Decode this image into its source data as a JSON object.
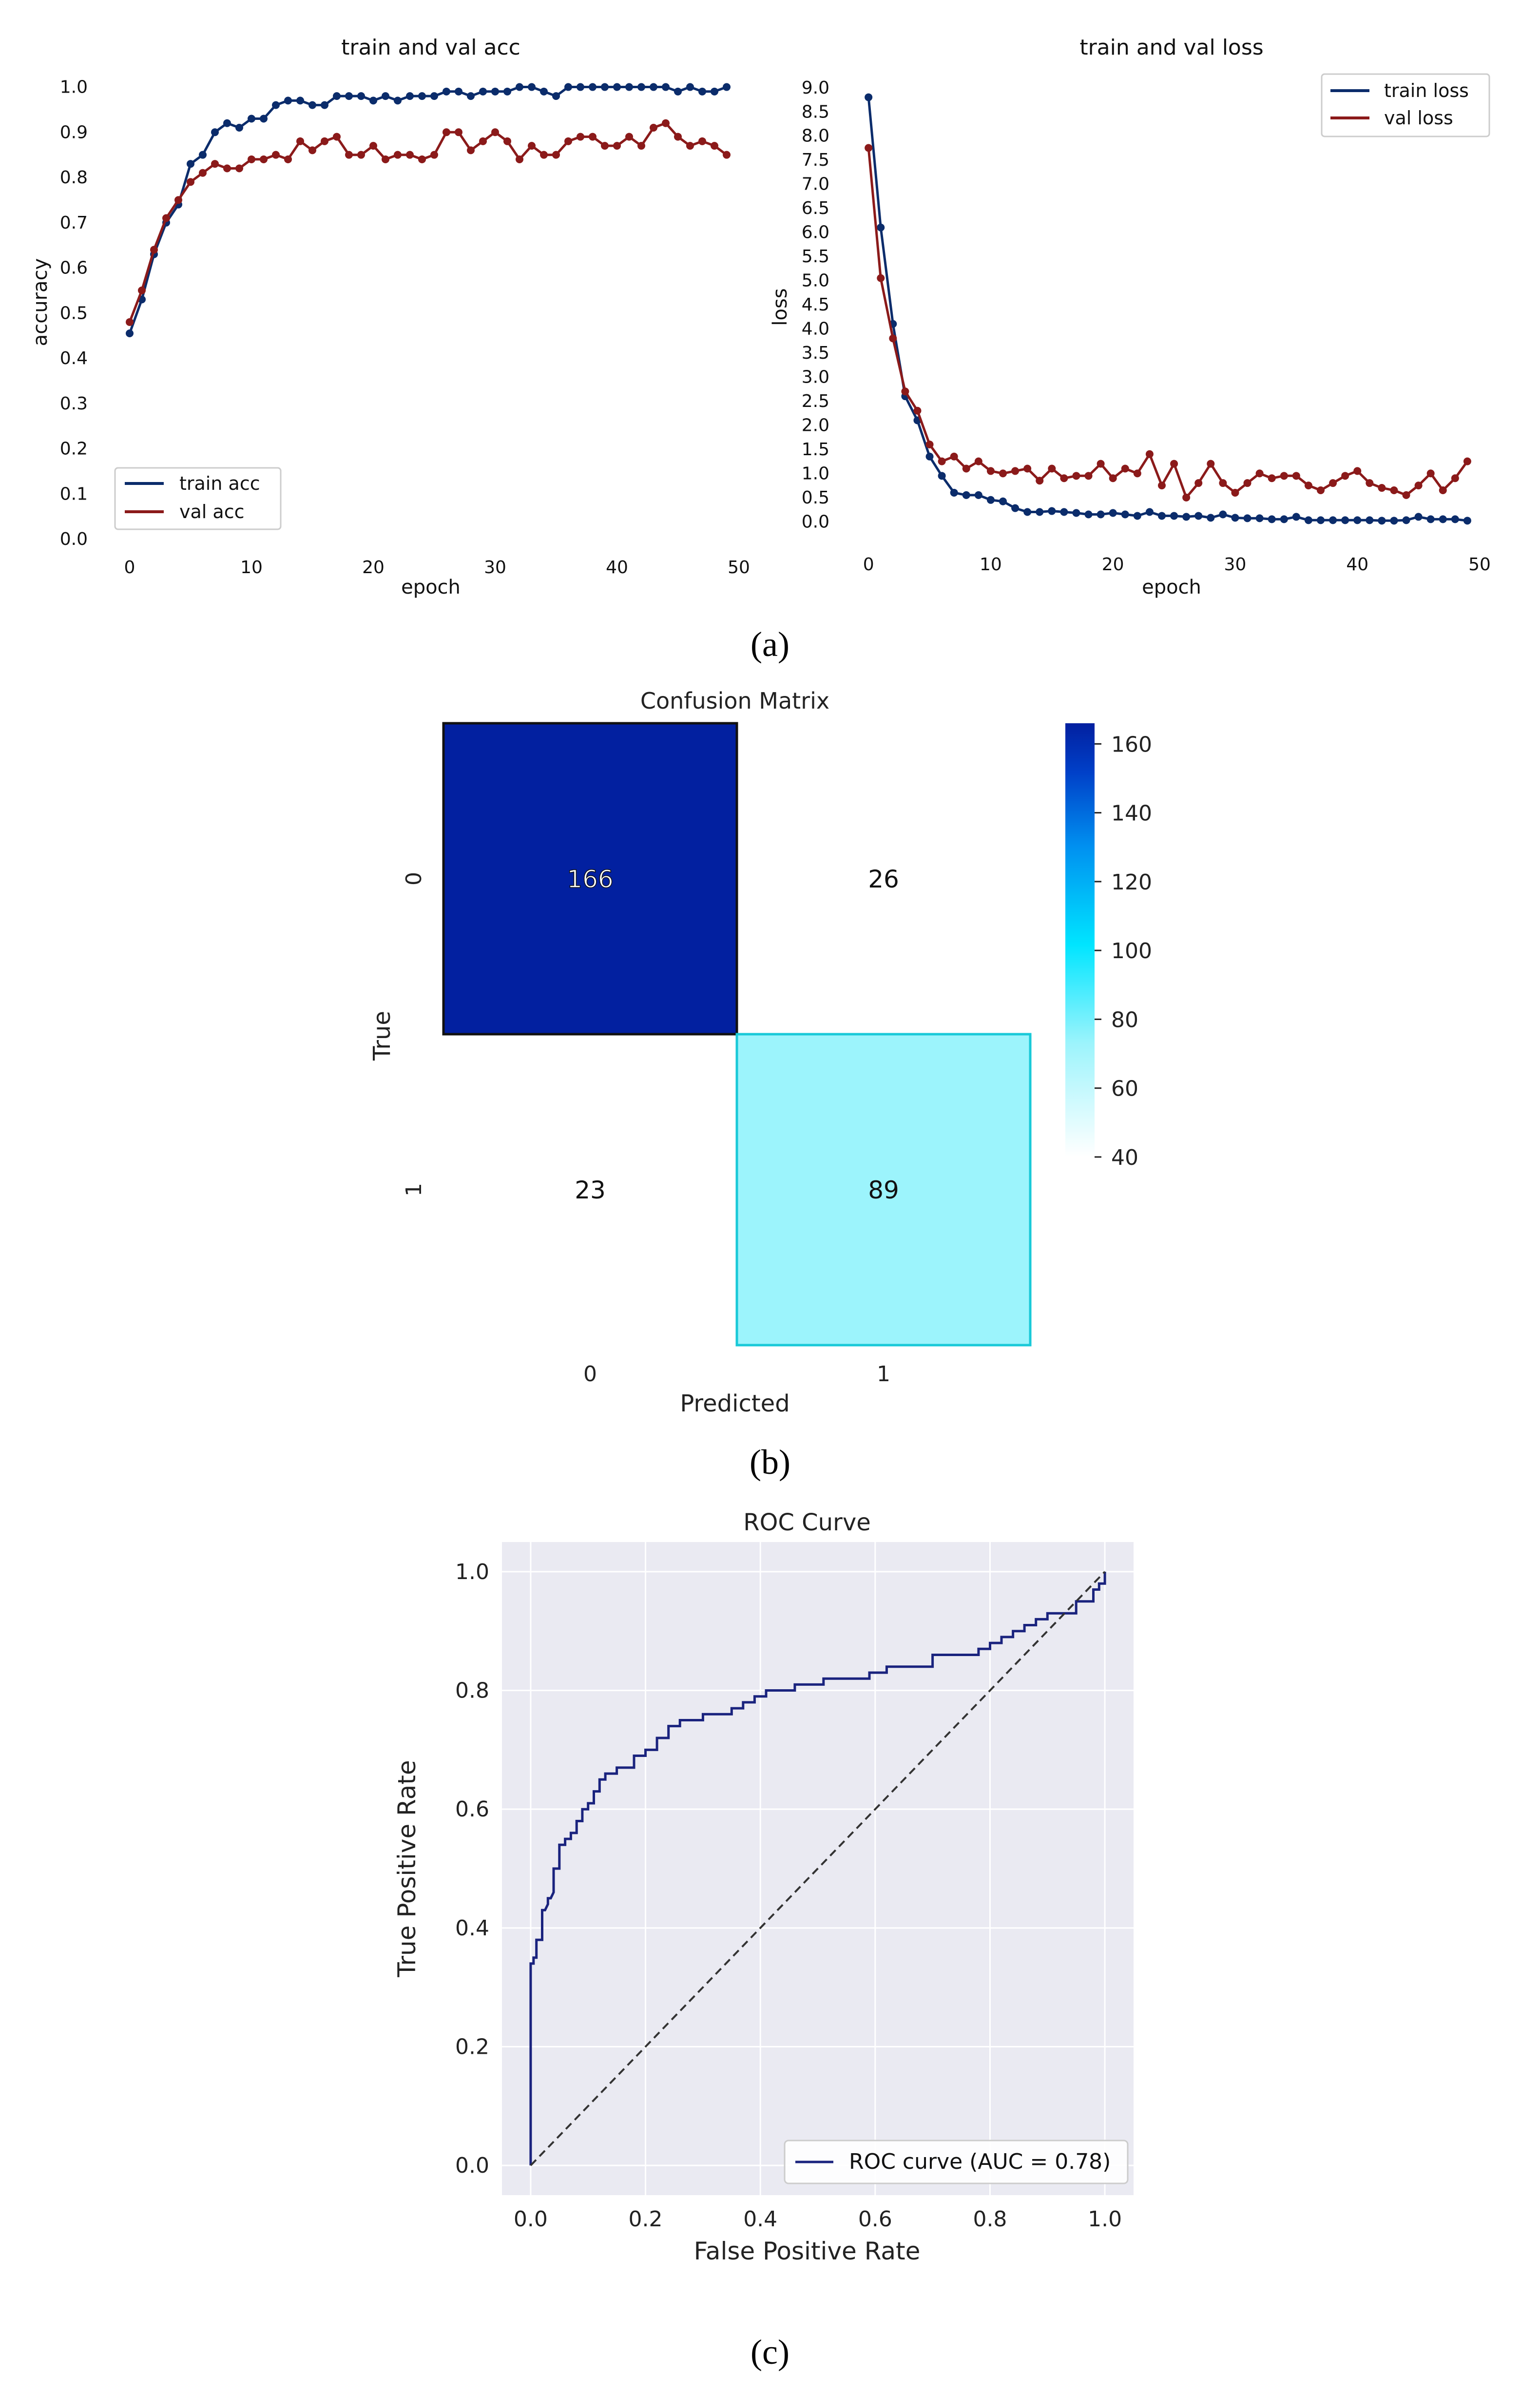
{
  "captions": {
    "a": "(a)",
    "b": "(b)",
    "c": "(c)"
  },
  "chart_data": [
    {
      "id": "acc",
      "type": "line",
      "title": "train and val acc",
      "xlabel": "epoch",
      "ylabel": "accuracy",
      "xlim": [
        -2,
        50
      ],
      "ylim": [
        0.0,
        1.02
      ],
      "xticks": [
        "0",
        "10",
        "20",
        "30",
        "40",
        "50"
      ],
      "yticks": [
        "0.0",
        "0.1",
        "0.2",
        "0.3",
        "0.4",
        "0.5",
        "0.6",
        "0.7",
        "0.8",
        "0.9",
        "1.0"
      ],
      "legend_position": "lower-left",
      "series": [
        {
          "name": "train acc",
          "color": "#0b2c6b",
          "values": [
            0.455,
            0.53,
            0.63,
            0.7,
            0.74,
            0.83,
            0.85,
            0.9,
            0.92,
            0.91,
            0.93,
            0.93,
            0.96,
            0.97,
            0.97,
            0.96,
            0.96,
            0.98,
            0.98,
            0.98,
            0.97,
            0.98,
            0.97,
            0.98,
            0.98,
            0.98,
            0.99,
            0.99,
            0.98,
            0.99,
            0.99,
            0.99,
            1.0,
            1.0,
            0.99,
            0.98,
            1.0,
            1.0,
            1.0,
            1.0,
            1.0,
            1.0,
            1.0,
            1.0,
            1.0,
            0.99,
            1.0,
            0.99,
            0.99,
            1.0
          ]
        },
        {
          "name": "val acc",
          "color": "#8b1a1a",
          "values": [
            0.48,
            0.55,
            0.64,
            0.71,
            0.75,
            0.79,
            0.81,
            0.83,
            0.82,
            0.82,
            0.84,
            0.84,
            0.85,
            0.84,
            0.88,
            0.86,
            0.88,
            0.89,
            0.85,
            0.85,
            0.87,
            0.84,
            0.85,
            0.85,
            0.84,
            0.85,
            0.9,
            0.9,
            0.86,
            0.88,
            0.9,
            0.88,
            0.84,
            0.87,
            0.85,
            0.85,
            0.88,
            0.89,
            0.89,
            0.87,
            0.87,
            0.89,
            0.87,
            0.91,
            0.92,
            0.89,
            0.87,
            0.88,
            0.87,
            0.85
          ]
        }
      ]
    },
    {
      "id": "loss",
      "type": "line",
      "title": "train and val loss",
      "xlabel": "epoch",
      "ylabel": "loss",
      "xlim": [
        -2,
        50
      ],
      "ylim": [
        -0.3,
        9.2
      ],
      "xticks": [
        "0",
        "10",
        "20",
        "30",
        "40",
        "50"
      ],
      "yticks": [
        "0.0",
        "0.5",
        "1.0",
        "1.5",
        "2.0",
        "2.5",
        "3.0",
        "3.5",
        "4.0",
        "4.5",
        "5.0",
        "5.5",
        "6.0",
        "6.5",
        "7.0",
        "7.5",
        "8.0",
        "8.5",
        "9.0"
      ],
      "legend_position": "upper-right",
      "series": [
        {
          "name": "train loss",
          "color": "#0b2c6b",
          "values": [
            8.8,
            6.1,
            4.1,
            2.6,
            2.1,
            1.35,
            0.95,
            0.6,
            0.55,
            0.55,
            0.45,
            0.42,
            0.28,
            0.2,
            0.2,
            0.22,
            0.2,
            0.18,
            0.15,
            0.15,
            0.18,
            0.15,
            0.12,
            0.2,
            0.12,
            0.12,
            0.1,
            0.12,
            0.08,
            0.15,
            0.08,
            0.07,
            0.07,
            0.05,
            0.05,
            0.1,
            0.03,
            0.03,
            0.03,
            0.03,
            0.03,
            0.03,
            0.02,
            0.02,
            0.03,
            0.1,
            0.05,
            0.05,
            0.05,
            0.02
          ]
        },
        {
          "name": "val loss",
          "color": "#8b1a1a",
          "values": [
            7.75,
            5.05,
            3.8,
            2.7,
            2.3,
            1.6,
            1.25,
            1.35,
            1.1,
            1.25,
            1.05,
            1.0,
            1.05,
            1.1,
            0.85,
            1.1,
            0.9,
            0.95,
            0.95,
            1.2,
            0.9,
            1.1,
            1.0,
            1.4,
            0.75,
            1.2,
            0.5,
            0.8,
            1.2,
            0.8,
            0.6,
            0.8,
            1.0,
            0.9,
            0.95,
            0.95,
            0.75,
            0.65,
            0.8,
            0.95,
            1.05,
            0.8,
            0.7,
            0.65,
            0.55,
            0.75,
            1.0,
            0.65,
            0.9,
            1.25
          ]
        }
      ]
    },
    {
      "id": "cm",
      "type": "heatmap",
      "title": "Confusion Matrix",
      "xlabel": "Predicted",
      "ylabel": "True",
      "x_tick_labels": [
        "0",
        "1"
      ],
      "y_tick_labels": [
        "0",
        "1"
      ],
      "matrix": [
        [
          166,
          26
        ],
        [
          23,
          89
        ]
      ],
      "visible_cells": [
        [
          true,
          false
        ],
        [
          false,
          true
        ]
      ],
      "cell_colors": [
        [
          "#0220a0",
          "#ffffff"
        ],
        [
          "#ffffff",
          "#9cf4fc"
        ]
      ],
      "cell_border_colors": [
        [
          "#111111",
          "#ffffff"
        ],
        [
          "#ffffff",
          "#19c9d8"
        ]
      ],
      "colorbar": {
        "min": 23,
        "max": 166,
        "ticks": [
          "40",
          "60",
          "80",
          "100",
          "120",
          "140",
          "160"
        ]
      }
    },
    {
      "id": "roc",
      "type": "line",
      "title": "ROC Curve",
      "xlabel": "False Positive Rate",
      "ylabel": "True Positive Rate",
      "xlim": [
        -0.05,
        1.05
      ],
      "ylim": [
        -0.05,
        1.05
      ],
      "xticks": [
        "0.0",
        "0.2",
        "0.4",
        "0.6",
        "0.8",
        "1.0"
      ],
      "yticks": [
        "0.0",
        "0.2",
        "0.4",
        "0.6",
        "0.8",
        "1.0"
      ],
      "grid": true,
      "legend_position": "lower-right",
      "series": [
        {
          "name": "ROC curve (AUC = 0.78)",
          "color": "#1a237e",
          "x": [
            0,
            0,
            0.005,
            0.005,
            0.01,
            0.01,
            0.015,
            0.02,
            0.02,
            0.025,
            0.03,
            0.03,
            0.035,
            0.04,
            0.04,
            0.05,
            0.05,
            0.06,
            0.06,
            0.07,
            0.07,
            0.08,
            0.08,
            0.09,
            0.09,
            0.1,
            0.1,
            0.11,
            0.11,
            0.12,
            0.12,
            0.13,
            0.13,
            0.15,
            0.15,
            0.18,
            0.18,
            0.2,
            0.2,
            0.22,
            0.22,
            0.24,
            0.24,
            0.26,
            0.26,
            0.3,
            0.3,
            0.35,
            0.35,
            0.37,
            0.37,
            0.39,
            0.39,
            0.41,
            0.41,
            0.46,
            0.46,
            0.51,
            0.51,
            0.59,
            0.59,
            0.62,
            0.62,
            0.7,
            0.7,
            0.78,
            0.78,
            0.8,
            0.8,
            0.82,
            0.82,
            0.84,
            0.84,
            0.86,
            0.86,
            0.88,
            0.88,
            0.9,
            0.9,
            0.95,
            0.95,
            0.98,
            0.98,
            0.99,
            0.99,
            1.0,
            1.0
          ],
          "y": [
            0,
            0.34,
            0.34,
            0.35,
            0.35,
            0.38,
            0.38,
            0.38,
            0.43,
            0.43,
            0.44,
            0.45,
            0.45,
            0.46,
            0.5,
            0.5,
            0.54,
            0.54,
            0.55,
            0.55,
            0.56,
            0.56,
            0.58,
            0.58,
            0.6,
            0.6,
            0.61,
            0.61,
            0.63,
            0.63,
            0.65,
            0.65,
            0.66,
            0.66,
            0.67,
            0.67,
            0.69,
            0.69,
            0.7,
            0.7,
            0.72,
            0.72,
            0.74,
            0.74,
            0.75,
            0.75,
            0.76,
            0.76,
            0.77,
            0.77,
            0.78,
            0.78,
            0.79,
            0.79,
            0.8,
            0.8,
            0.81,
            0.81,
            0.82,
            0.82,
            0.83,
            0.83,
            0.84,
            0.84,
            0.86,
            0.86,
            0.87,
            0.87,
            0.88,
            0.88,
            0.89,
            0.89,
            0.9,
            0.9,
            0.91,
            0.91,
            0.92,
            0.92,
            0.93,
            0.93,
            0.95,
            0.95,
            0.97,
            0.97,
            0.98,
            0.98,
            1.0
          ]
        },
        {
          "name": "",
          "color": "#333333",
          "dashed": true,
          "x": [
            0,
            1
          ],
          "y": [
            0,
            1
          ]
        }
      ]
    }
  ]
}
